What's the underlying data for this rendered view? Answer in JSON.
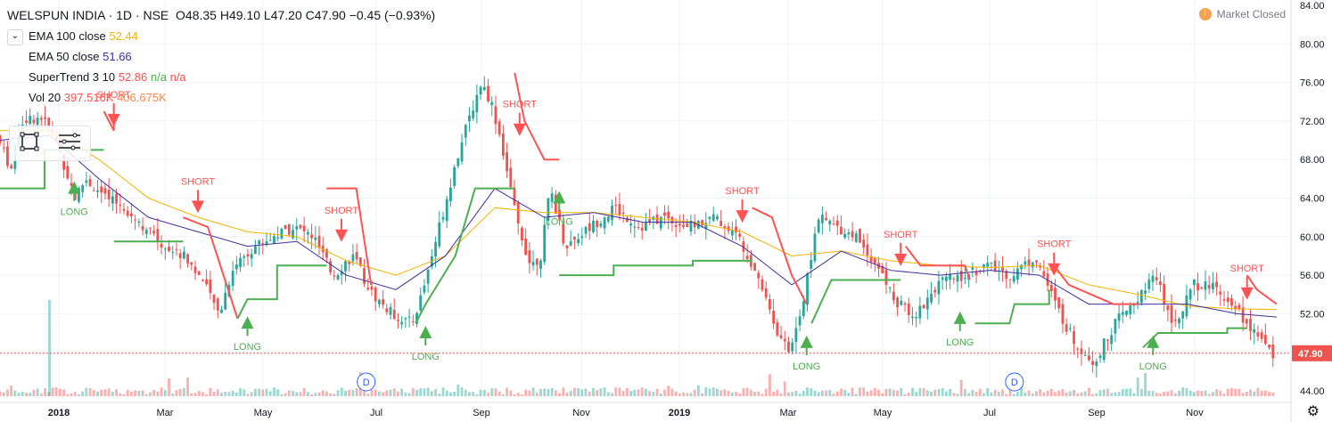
{
  "header": {
    "symbol": "WELSPUN INDIA · 1D · NSE",
    "o": "O48.35",
    "h": "H49.10",
    "l": "L47.20",
    "c": "C47.90",
    "change": "−0.45 (−0.93%)"
  },
  "market_status": {
    "icon": "info-icon",
    "label": "Market Closed"
  },
  "indicators": [
    {
      "name": "EMA 100 close",
      "value": "52.44",
      "color": "#f5b400"
    },
    {
      "name": "EMA 50 close",
      "value": "51.66",
      "color": "#3f2ea1"
    },
    {
      "name": "SuperTrend 3 10",
      "value": "52.86",
      "extra1": "n/a",
      "extra2": "n/a",
      "color": "#ff5252",
      "extra1_color": "#4caf50",
      "extra2_color": "#ff5252"
    },
    {
      "name": "Vol 20",
      "value": "397.516K",
      "extra1": "406.675K",
      "color": "#ff5252",
      "extra1_color": "#ff8a50"
    }
  ],
  "colors": {
    "up": "#26a69a",
    "down": "#ef5350",
    "ema100": "#f5b400",
    "ema50": "#3f2ea1",
    "st_up": "#4caf50",
    "st_down": "#ff5252",
    "last_price_bg": "#ef5350"
  },
  "chart_data": {
    "type": "candlestick",
    "ylim": [
      44,
      84
    ],
    "y_ticks": [
      "84.00",
      "80.00",
      "76.00",
      "72.00",
      "68.00",
      "64.00",
      "60.00",
      "56.00",
      "52.00",
      "48.00",
      "44.00"
    ],
    "x_ticks": [
      "2018",
      "Mar",
      "May",
      "Jul",
      "Sep",
      "Nov",
      "2019",
      "Mar",
      "May",
      "Jul",
      "Sep",
      "Nov"
    ],
    "last_price": "47.90",
    "close_path": [
      [
        0,
        70.5
      ],
      [
        0.3,
        67
      ],
      [
        0.5,
        72
      ],
      [
        0.9,
        72.5
      ],
      [
        1.2,
        70
      ],
      [
        1.6,
        64
      ],
      [
        1.8,
        66
      ],
      [
        2.2,
        64
      ],
      [
        2.6,
        63
      ],
      [
        3.0,
        61
      ],
      [
        3.4,
        59
      ],
      [
        3.8,
        58
      ],
      [
        4.1,
        56
      ],
      [
        4.5,
        52
      ],
      [
        4.8,
        57
      ],
      [
        5.2,
        59
      ],
      [
        5.6,
        60
      ],
      [
        6.0,
        61
      ],
      [
        6.4,
        60
      ],
      [
        6.8,
        56
      ],
      [
        7.2,
        58
      ],
      [
        7.6,
        54
      ],
      [
        8.0,
        52
      ],
      [
        8.4,
        51
      ],
      [
        8.6,
        54
      ],
      [
        9.0,
        62
      ],
      [
        9.3,
        68
      ],
      [
        9.6,
        73
      ],
      [
        9.8,
        76
      ],
      [
        10.0,
        74
      ],
      [
        10.2,
        70
      ],
      [
        10.5,
        62
      ],
      [
        10.8,
        57
      ],
      [
        11.0,
        58
      ],
      [
        11.2,
        65
      ],
      [
        11.5,
        59
      ],
      [
        12.0,
        61
      ],
      [
        12.5,
        63
      ],
      [
        13.0,
        61
      ],
      [
        13.5,
        62
      ],
      [
        14.0,
        61
      ],
      [
        14.5,
        62
      ],
      [
        15.0,
        60
      ],
      [
        15.4,
        56
      ],
      [
        15.8,
        50
      ],
      [
        16.0,
        48
      ],
      [
        16.3,
        53
      ],
      [
        16.6,
        62
      ],
      [
        17.0,
        61
      ],
      [
        17.4,
        60
      ],
      [
        17.8,
        57
      ],
      [
        18.2,
        53
      ],
      [
        18.6,
        52
      ],
      [
        19.0,
        55
      ],
      [
        19.5,
        56
      ],
      [
        20.0,
        57
      ],
      [
        20.5,
        56
      ],
      [
        21.0,
        58
      ],
      [
        21.4,
        53
      ],
      [
        21.8,
        49
      ],
      [
        22.2,
        47
      ],
      [
        22.6,
        51
      ],
      [
        23.0,
        53
      ],
      [
        23.4,
        56
      ],
      [
        23.8,
        51
      ],
      [
        24.2,
        55
      ],
      [
        24.6,
        55
      ],
      [
        25.0,
        53
      ],
      [
        25.4,
        50
      ],
      [
        25.8,
        47.9
      ]
    ],
    "ema100": [
      [
        0,
        71
      ],
      [
        1,
        71
      ],
      [
        2,
        68
      ],
      [
        3,
        64
      ],
      [
        4,
        62
      ],
      [
        5,
        60.5
      ],
      [
        6,
        60
      ],
      [
        7,
        57.5
      ],
      [
        8,
        56
      ],
      [
        9,
        58
      ],
      [
        10,
        63
      ],
      [
        11,
        62.5
      ],
      [
        12,
        62.5
      ],
      [
        13,
        62
      ],
      [
        14,
        61.5
      ],
      [
        15,
        60.5
      ],
      [
        16,
        58
      ],
      [
        17,
        58.5
      ],
      [
        18,
        57.5
      ],
      [
        19,
        57
      ],
      [
        20,
        56.8
      ],
      [
        21,
        57
      ],
      [
        22,
        55
      ],
      [
        23,
        54
      ],
      [
        24,
        52.8
      ],
      [
        25,
        52.5
      ],
      [
        25.8,
        52.44
      ]
    ],
    "ema50": [
      [
        0,
        70
      ],
      [
        1,
        70.5
      ],
      [
        2,
        66
      ],
      [
        3,
        62
      ],
      [
        4,
        60.5
      ],
      [
        5,
        59
      ],
      [
        6,
        59.5
      ],
      [
        7,
        56
      ],
      [
        8,
        54.5
      ],
      [
        9,
        58
      ],
      [
        10,
        65
      ],
      [
        11,
        62
      ],
      [
        12,
        62.5
      ],
      [
        13,
        61.5
      ],
      [
        14,
        61.5
      ],
      [
        15,
        59
      ],
      [
        16,
        55
      ],
      [
        17,
        58.5
      ],
      [
        18,
        56.5
      ],
      [
        19,
        56
      ],
      [
        20,
        56.5
      ],
      [
        21,
        56
      ],
      [
        22,
        53
      ],
      [
        23,
        53
      ],
      [
        24,
        53
      ],
      [
        25,
        52
      ],
      [
        25.8,
        51.66
      ]
    ],
    "supertrend_segments": [
      {
        "dir": "long",
        "points": [
          [
            0,
            65
          ],
          [
            0.9,
            65
          ],
          [
            0.9,
            69
          ],
          [
            2.1,
            69
          ]
        ]
      },
      {
        "dir": "short",
        "points": [
          [
            2.1,
            73
          ],
          [
            2.3,
            71
          ],
          [
            2.3,
            72
          ]
        ]
      },
      {
        "dir": "long",
        "points": [
          [
            2.3,
            59.5
          ],
          [
            3.7,
            59.5
          ]
        ]
      },
      {
        "dir": "short",
        "points": [
          [
            3.7,
            62
          ],
          [
            4.2,
            61
          ],
          [
            4.8,
            51.5
          ]
        ]
      },
      {
        "dir": "long",
        "points": [
          [
            4.8,
            51.5
          ],
          [
            5.0,
            53.5
          ],
          [
            5.6,
            53.5
          ],
          [
            5.6,
            57
          ],
          [
            6.6,
            57
          ]
        ]
      },
      {
        "dir": "short",
        "points": [
          [
            6.6,
            65
          ],
          [
            7.2,
            65
          ],
          [
            7.5,
            55
          ]
        ]
      },
      {
        "dir": "long",
        "points": [
          [
            8.4,
            51
          ],
          [
            8.6,
            53
          ],
          [
            9.2,
            58
          ],
          [
            9.6,
            65
          ],
          [
            10.4,
            65
          ]
        ]
      },
      {
        "dir": "short",
        "points": [
          [
            10.4,
            77
          ],
          [
            10.6,
            72
          ],
          [
            11.0,
            68
          ],
          [
            11.3,
            68
          ]
        ]
      },
      {
        "dir": "long",
        "points": [
          [
            11.3,
            56
          ],
          [
            12.4,
            56
          ],
          [
            12.4,
            57
          ],
          [
            14.0,
            57
          ],
          [
            14.0,
            57.5
          ],
          [
            15.2,
            57.5
          ]
        ]
      },
      {
        "dir": "short",
        "points": [
          [
            15.2,
            63
          ],
          [
            15.6,
            62
          ],
          [
            16.0,
            56
          ],
          [
            16.3,
            53
          ]
        ]
      },
      {
        "dir": "long",
        "points": [
          [
            16.4,
            51
          ],
          [
            16.8,
            55.5
          ],
          [
            18.2,
            55.5
          ]
        ]
      },
      {
        "dir": "short",
        "points": [
          [
            18.3,
            59
          ],
          [
            18.6,
            57
          ],
          [
            19.5,
            57
          ],
          [
            19.6,
            55.5
          ]
        ]
      },
      {
        "dir": "long",
        "points": [
          [
            19.7,
            51
          ],
          [
            20.0,
            51
          ],
          [
            20.4,
            51
          ],
          [
            20.5,
            53
          ],
          [
            21.2,
            53
          ],
          [
            21.2,
            54.5
          ]
        ]
      },
      {
        "dir": "short",
        "points": [
          [
            21.3,
            57
          ],
          [
            21.6,
            55
          ],
          [
            22.5,
            53
          ],
          [
            23.0,
            53
          ]
        ]
      },
      {
        "dir": "long",
        "points": [
          [
            23.1,
            48.5
          ],
          [
            23.4,
            50
          ],
          [
            24.8,
            50
          ],
          [
            24.8,
            50.5
          ],
          [
            25.2,
            50.5
          ]
        ]
      },
      {
        "dir": "short",
        "points": [
          [
            25.2,
            56
          ],
          [
            25.4,
            54.5
          ],
          [
            25.8,
            53
          ]
        ]
      }
    ],
    "signals": [
      {
        "type": "long",
        "label": "LONG",
        "x": 1.5,
        "y": 65
      },
      {
        "type": "short",
        "label": "SHORT",
        "x": 2.3,
        "y": 72
      },
      {
        "type": "short",
        "label": "SHORT",
        "x": 4.0,
        "y": 63
      },
      {
        "type": "long",
        "label": "LONG",
        "x": 5.0,
        "y": 51
      },
      {
        "type": "short",
        "label": "SHORT",
        "x": 6.9,
        "y": 60
      },
      {
        "type": "long",
        "label": "LONG",
        "x": 8.6,
        "y": 50
      },
      {
        "type": "short",
        "label": "SHORT",
        "x": 10.5,
        "y": 71
      },
      {
        "type": "long",
        "label": "LONG",
        "x": 11.3,
        "y": 64
      },
      {
        "type": "short",
        "label": "SHORT",
        "x": 15.0,
        "y": 62
      },
      {
        "type": "long",
        "label": "LONG",
        "x": 16.3,
        "y": 49
      },
      {
        "type": "short",
        "label": "SHORT",
        "x": 18.2,
        "y": 57.5
      },
      {
        "type": "long",
        "label": "LONG",
        "x": 19.4,
        "y": 51.5
      },
      {
        "type": "short",
        "label": "SHORT",
        "x": 21.3,
        "y": 56.5
      },
      {
        "type": "long",
        "label": "LONG",
        "x": 23.3,
        "y": 49
      },
      {
        "type": "short",
        "label": "SHORT",
        "x": 25.2,
        "y": 54
      }
    ],
    "events": [
      {
        "label": "D",
        "x": 7.4
      },
      {
        "label": "D",
        "x": 20.5
      }
    ]
  }
}
